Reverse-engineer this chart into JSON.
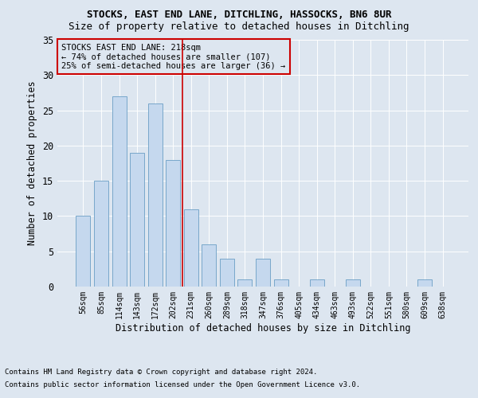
{
  "title1": "STOCKS, EAST END LANE, DITCHLING, HASSOCKS, BN6 8UR",
  "title2": "Size of property relative to detached houses in Ditchling",
  "xlabel": "Distribution of detached houses by size in Ditchling",
  "ylabel": "Number of detached properties",
  "categories": [
    "56sqm",
    "85sqm",
    "114sqm",
    "143sqm",
    "172sqm",
    "202sqm",
    "231sqm",
    "260sqm",
    "289sqm",
    "318sqm",
    "347sqm",
    "376sqm",
    "405sqm",
    "434sqm",
    "463sqm",
    "493sqm",
    "522sqm",
    "551sqm",
    "580sqm",
    "609sqm",
    "638sqm"
  ],
  "values": [
    10,
    15,
    27,
    19,
    26,
    18,
    11,
    6,
    4,
    1,
    4,
    1,
    0,
    1,
    0,
    1,
    0,
    0,
    0,
    1,
    0
  ],
  "bar_color": "#c5d8ee",
  "bar_edge_color": "#6a9ec5",
  "vline_x": 5.5,
  "vline_color": "#cc0000",
  "annotation_box_text": "STOCKS EAST END LANE: 218sqm\n← 74% of detached houses are smaller (107)\n25% of semi-detached houses are larger (36) →",
  "box_edge_color": "#cc0000",
  "ylim": [
    0,
    35
  ],
  "yticks": [
    0,
    5,
    10,
    15,
    20,
    25,
    30,
    35
  ],
  "footer1": "Contains HM Land Registry data © Crown copyright and database right 2024.",
  "footer2": "Contains public sector information licensed under the Open Government Licence v3.0.",
  "background_color": "#dde6f0",
  "plot_bg_color": "#dde6f0",
  "grid_color": "#ffffff",
  "title1_fontsize": 9,
  "title2_fontsize": 9,
  "ylabel_fontsize": 8.5,
  "xlabel_fontsize": 8.5,
  "ytick_fontsize": 8.5,
  "xtick_fontsize": 7,
  "annotation_fontsize": 7.5,
  "footer_fontsize": 6.5
}
